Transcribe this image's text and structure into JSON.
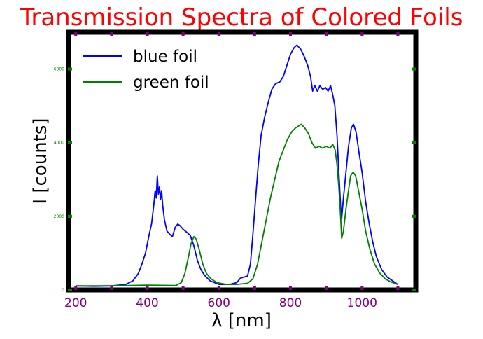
{
  "chart_data": {
    "type": "line",
    "title": "Transmission Spectra of Colored Foils",
    "xlabel": "λ [nm]",
    "ylabel": "I [counts]",
    "xlim": [
      180,
      1150
    ],
    "ylim": [
      0,
      7000
    ],
    "x_ticks": [
      200,
      400,
      600,
      800,
      1000
    ],
    "y_ticks": [
      0,
      2000,
      4000,
      6000
    ],
    "grid": false,
    "legend_position": "top-left",
    "colors": {
      "title": "#ff0000",
      "x_tick_labels": "#800080",
      "y_tick_labels": "#008000",
      "frame": "#000000"
    },
    "series": [
      {
        "name": "blue foil",
        "color": "#0000ff",
        "points": [
          [
            200,
            110
          ],
          [
            250,
            100
          ],
          [
            300,
            110
          ],
          [
            340,
            150
          ],
          [
            360,
            250
          ],
          [
            375,
            450
          ],
          [
            385,
            700
          ],
          [
            395,
            1000
          ],
          [
            405,
            1500
          ],
          [
            412,
            1800
          ],
          [
            418,
            2300
          ],
          [
            422,
            2700
          ],
          [
            425,
            2500
          ],
          [
            428,
            3100
          ],
          [
            431,
            2600
          ],
          [
            434,
            2800
          ],
          [
            437,
            2450
          ],
          [
            440,
            2700
          ],
          [
            443,
            2300
          ],
          [
            448,
            1900
          ],
          [
            455,
            1600
          ],
          [
            462,
            1520
          ],
          [
            470,
            1450
          ],
          [
            478,
            1700
          ],
          [
            485,
            1790
          ],
          [
            492,
            1740
          ],
          [
            500,
            1650
          ],
          [
            510,
            1570
          ],
          [
            520,
            1480
          ],
          [
            530,
            1200
          ],
          [
            540,
            800
          ],
          [
            550,
            550
          ],
          [
            560,
            400
          ],
          [
            575,
            250
          ],
          [
            600,
            150
          ],
          [
            630,
            150
          ],
          [
            650,
            200
          ],
          [
            660,
            320
          ],
          [
            670,
            350
          ],
          [
            680,
            380
          ],
          [
            688,
            700
          ],
          [
            695,
            1500
          ],
          [
            702,
            2400
          ],
          [
            710,
            3400
          ],
          [
            718,
            4200
          ],
          [
            728,
            4700
          ],
          [
            738,
            5100
          ],
          [
            748,
            5450
          ],
          [
            758,
            5600
          ],
          [
            770,
            5650
          ],
          [
            780,
            5800
          ],
          [
            790,
            6100
          ],
          [
            800,
            6400
          ],
          [
            810,
            6580
          ],
          [
            818,
            6650
          ],
          [
            828,
            6550
          ],
          [
            838,
            6350
          ],
          [
            848,
            6100
          ],
          [
            856,
            5800
          ],
          [
            862,
            5400
          ],
          [
            868,
            5550
          ],
          [
            875,
            5400
          ],
          [
            882,
            5550
          ],
          [
            890,
            5450
          ],
          [
            898,
            5500
          ],
          [
            905,
            5400
          ],
          [
            912,
            5550
          ],
          [
            918,
            5300
          ],
          [
            924,
            5000
          ],
          [
            930,
            4200
          ],
          [
            935,
            3200
          ],
          [
            940,
            2300
          ],
          [
            943,
            1950
          ],
          [
            948,
            2500
          ],
          [
            955,
            3200
          ],
          [
            962,
            3900
          ],
          [
            970,
            4400
          ],
          [
            976,
            4500
          ],
          [
            983,
            4300
          ],
          [
            992,
            3700
          ],
          [
            1000,
            3200
          ],
          [
            1010,
            2400
          ],
          [
            1020,
            1800
          ],
          [
            1030,
            1300
          ],
          [
            1040,
            900
          ],
          [
            1055,
            550
          ],
          [
            1070,
            350
          ],
          [
            1085,
            250
          ],
          [
            1100,
            150
          ]
        ]
      },
      {
        "name": "green foil",
        "color": "#008000",
        "points": [
          [
            200,
            110
          ],
          [
            250,
            110
          ],
          [
            300,
            115
          ],
          [
            350,
            120
          ],
          [
            400,
            130
          ],
          [
            440,
            125
          ],
          [
            480,
            120
          ],
          [
            495,
            200
          ],
          [
            505,
            450
          ],
          [
            515,
            900
          ],
          [
            522,
            1250
          ],
          [
            530,
            1450
          ],
          [
            537,
            1380
          ],
          [
            545,
            1100
          ],
          [
            555,
            700
          ],
          [
            565,
            450
          ],
          [
            578,
            300
          ],
          [
            595,
            200
          ],
          [
            620,
            150
          ],
          [
            650,
            150
          ],
          [
            680,
            180
          ],
          [
            695,
            300
          ],
          [
            708,
            700
          ],
          [
            720,
            1300
          ],
          [
            732,
            1900
          ],
          [
            744,
            2500
          ],
          [
            756,
            3000
          ],
          [
            768,
            3500
          ],
          [
            780,
            3800
          ],
          [
            792,
            4100
          ],
          [
            804,
            4300
          ],
          [
            814,
            4400
          ],
          [
            822,
            4450
          ],
          [
            830,
            4500
          ],
          [
            840,
            4400
          ],
          [
            850,
            4250
          ],
          [
            860,
            4000
          ],
          [
            870,
            3850
          ],
          [
            880,
            3900
          ],
          [
            890,
            3850
          ],
          [
            900,
            3900
          ],
          [
            910,
            3850
          ],
          [
            918,
            3950
          ],
          [
            925,
            3800
          ],
          [
            930,
            3400
          ],
          [
            935,
            2800
          ],
          [
            940,
            2000
          ],
          [
            943,
            1400
          ],
          [
            948,
            1600
          ],
          [
            955,
            2200
          ],
          [
            962,
            2700
          ],
          [
            968,
            3100
          ],
          [
            975,
            3200
          ],
          [
            982,
            3100
          ],
          [
            990,
            2700
          ],
          [
            1000,
            2200
          ],
          [
            1010,
            1600
          ],
          [
            1022,
            1100
          ],
          [
            1035,
            700
          ],
          [
            1050,
            450
          ],
          [
            1065,
            300
          ],
          [
            1080,
            220
          ],
          [
            1100,
            150
          ]
        ]
      }
    ]
  }
}
